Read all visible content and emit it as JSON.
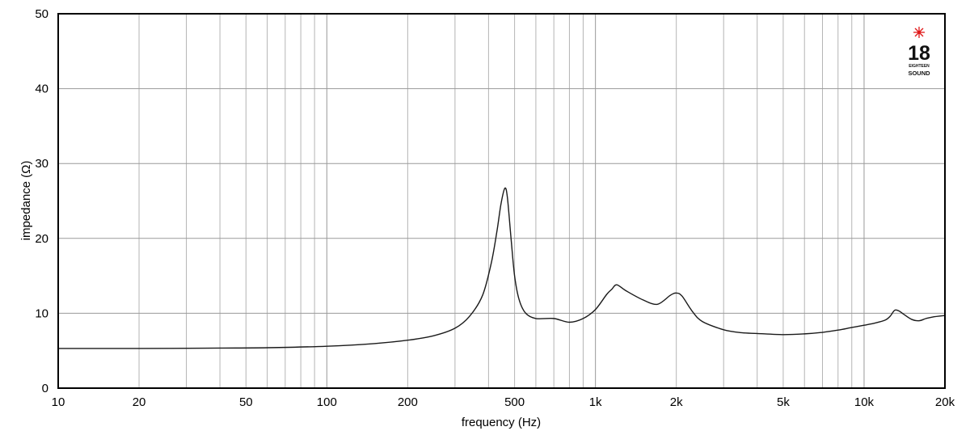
{
  "chart_data": {
    "type": "line",
    "xscale": "log",
    "xlim": [
      10,
      20000
    ],
    "ylim": [
      0,
      50
    ],
    "grid": true,
    "xlabel": "frequency (Hz)",
    "ylabel": "impedance (Ω)",
    "x_tick_values": [
      10,
      20,
      50,
      100,
      200,
      500,
      1000,
      2000,
      5000,
      10000,
      20000
    ],
    "x_tick_labels": [
      "10",
      "20",
      "50",
      "100",
      "200",
      "500",
      "1k",
      "2k",
      "5k",
      "10k",
      "20k"
    ],
    "y_tick_values": [
      0,
      10,
      20,
      30,
      40,
      50
    ],
    "y_tick_labels": [
      "0",
      "10",
      "20",
      "30",
      "40",
      "50"
    ],
    "series": [
      {
        "x": [
          10,
          20,
          40,
          60,
          100,
          150,
          200,
          250,
          300,
          340,
          380,
          410,
          430,
          445,
          460,
          470,
          485,
          500,
          520,
          550,
          600,
          700,
          800,
          900,
          1000,
          1100,
          1150,
          1200,
          1300,
          1500,
          1700,
          1900,
          2000,
          2100,
          2300,
          2500,
          3000,
          3500,
          4000,
          5000,
          6000,
          7000,
          8000,
          9000,
          10000,
          11000,
          12000,
          12500,
          13000,
          13500,
          14000,
          15000,
          16000,
          17000,
          18000,
          20000
        ],
        "y": [
          5.3,
          5.3,
          5.35,
          5.4,
          5.6,
          5.95,
          6.4,
          7.0,
          8.0,
          9.6,
          12.4,
          16.8,
          21.0,
          24.6,
          26.7,
          25.5,
          20.0,
          15.0,
          11.8,
          10.0,
          9.3,
          9.3,
          8.8,
          9.3,
          10.5,
          12.5,
          13.2,
          13.8,
          13.0,
          11.8,
          11.2,
          12.4,
          12.7,
          12.3,
          10.2,
          8.9,
          7.8,
          7.4,
          7.3,
          7.15,
          7.25,
          7.45,
          7.75,
          8.1,
          8.4,
          8.7,
          9.1,
          9.6,
          10.4,
          10.3,
          9.9,
          9.2,
          9.0,
          9.3,
          9.5,
          9.7
        ]
      }
    ],
    "logo_text": "18 EIGHTEEN SOUND"
  }
}
